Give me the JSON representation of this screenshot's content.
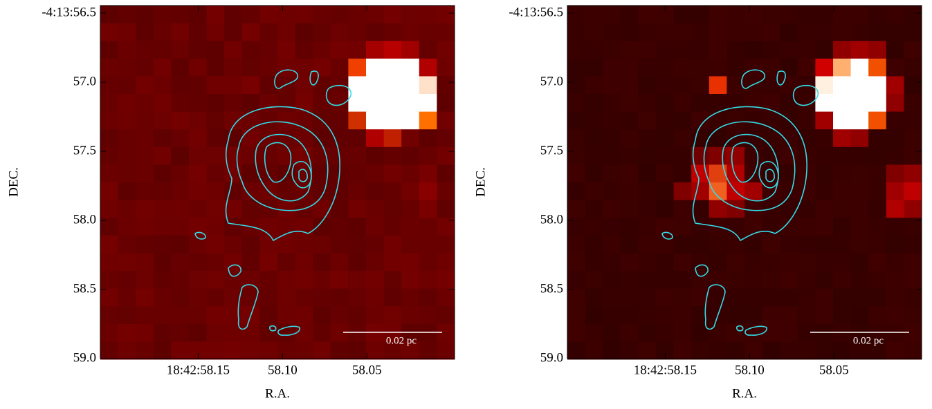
{
  "chart_data": [
    {
      "type": "image",
      "xlabel": "R.A.",
      "ylabel": "DEC.",
      "xlim": [
        58.208,
        57.998
      ],
      "ylim": [
        59.0,
        56.445
      ],
      "xticks": [
        {
          "value": 58.15,
          "label": "18:42:58.15"
        },
        {
          "value": 58.1,
          "label": "58.10"
        },
        {
          "value": 58.05,
          "label": "58.05"
        }
      ],
      "yticks": [
        {
          "value": 56.5,
          "label": "-4:13:56.5"
        },
        {
          "value": 57.0,
          "label": "57.0"
        },
        {
          "value": 57.5,
          "label": "57.5"
        },
        {
          "value": 58.0,
          "label": "58.0"
        },
        {
          "value": 58.5,
          "label": "58.5"
        },
        {
          "value": 59.0,
          "label": "59.0"
        }
      ],
      "scalebar_label": "0.02 pc"
    },
    {
      "type": "image",
      "xlabel": "R.A.",
      "ylabel": "DEC.",
      "xlim": [
        58.208,
        57.998
      ],
      "ylim": [
        59.0,
        56.445
      ],
      "xticks": [
        {
          "value": 58.15,
          "label": "18:42:58.15"
        },
        {
          "value": 58.1,
          "label": "58.10"
        },
        {
          "value": 58.05,
          "label": "58.05"
        }
      ],
      "yticks": [
        {
          "value": 56.5,
          "label": "-4:13:56.5"
        },
        {
          "value": 57.0,
          "label": "57.0"
        },
        {
          "value": 57.5,
          "label": "57.5"
        },
        {
          "value": 58.0,
          "label": "58.0"
        },
        {
          "value": 58.5,
          "label": "58.5"
        },
        {
          "value": 59.0,
          "label": "59.0"
        }
      ],
      "scalebar_label": "0.02 pc"
    }
  ]
}
